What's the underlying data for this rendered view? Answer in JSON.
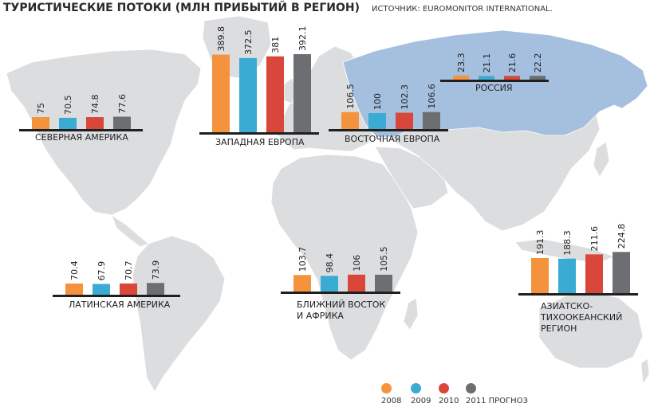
{
  "header": {
    "title": "ТУРИСТИЧЕСКИЕ ПОТОКИ (МЛН ПРИБЫТИЙ В РЕГИОН)",
    "source": "ИСТОЧНИК: EUROMONITOR INTERNATIONAL."
  },
  "legend": {
    "items": [
      {
        "label": "2008",
        "color": "#f5923e"
      },
      {
        "label": "2009",
        "color": "#3aabd2"
      },
      {
        "label": "2010",
        "color": "#d9473a"
      },
      {
        "label": "2011 ПРОГНОЗ",
        "color": "#6d6e71"
      }
    ]
  },
  "chart_data": {
    "type": "bar",
    "title": "ТУРИСТИЧЕСКИЕ ПОТОКИ (МЛН ПРИБЫТИЙ В РЕГИОН)",
    "categories": [
      "2008",
      "2009",
      "2010",
      "2011 ПРОГНОЗ"
    ],
    "colors": [
      "#f5923e",
      "#3aabd2",
      "#d9473a",
      "#6d6e71"
    ],
    "regions": [
      {
        "key": "north-america",
        "label_lines": [
          "СЕВЕРНАЯ АМЕРИКА"
        ],
        "values": [
          75,
          70.5,
          74.8,
          77.6
        ]
      },
      {
        "key": "western-europe",
        "label_lines": [
          "ЗАПАДНАЯ ЕВРОПА"
        ],
        "values": [
          389.8,
          372.5,
          381,
          392.1
        ]
      },
      {
        "key": "eastern-europe",
        "label_lines": [
          "ВОСТОЧНАЯ ЕВРОПА"
        ],
        "values": [
          106.5,
          100,
          102.3,
          106.6
        ]
      },
      {
        "key": "russia",
        "label_lines": [
          "РОССИЯ"
        ],
        "values": [
          23.3,
          21.1,
          21.6,
          22.2
        ]
      },
      {
        "key": "latin-america",
        "label_lines": [
          "ЛАТИНСКАЯ АМЕРИКА"
        ],
        "values": [
          70.4,
          67.9,
          70.7,
          73.9
        ]
      },
      {
        "key": "middle-east-africa",
        "label_lines": [
          "БЛИЖНИЙ ВОСТОК",
          "И АФРИКА"
        ],
        "values": [
          103.7,
          98.4,
          106,
          105.5
        ]
      },
      {
        "key": "asia-pacific",
        "label_lines": [
          "АЗИАТСКО-",
          "ТИХООКЕАНСКИЙ",
          "РЕГИОН"
        ],
        "values": [
          191.3,
          188.3,
          211.6,
          224.8
        ]
      }
    ]
  }
}
